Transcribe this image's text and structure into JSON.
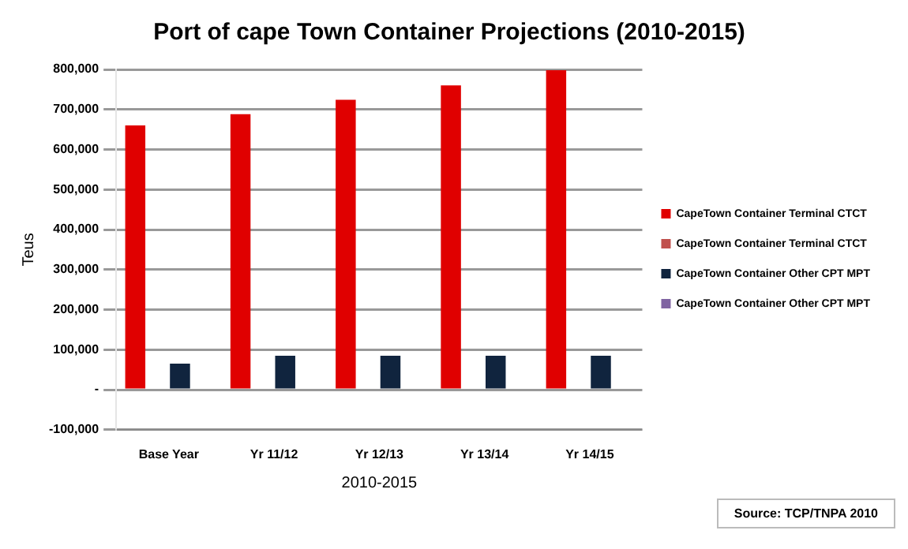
{
  "chart_data": {
    "type": "bar",
    "title": "Port of cape Town Container Projections (2010-2015)",
    "xlabel": "2010-2015",
    "ylabel": "Teus",
    "categories": [
      "Base Year",
      "Yr 11/12",
      "Yr 12/13",
      "Yr 13/14",
      "Yr 14/15"
    ],
    "series": [
      {
        "name": "CapeTown Container Terminal CTCT",
        "color": "#e00000",
        "values": [
          660000,
          688000,
          724000,
          760000,
          798000
        ]
      },
      {
        "name": "CapeTown Container Terminal CTCT",
        "color": "#c0504d",
        "values": [
          0,
          0,
          0,
          0,
          0
        ]
      },
      {
        "name": "CapeTown Container Other CPT MPT",
        "color": "#10243e",
        "values": [
          65000,
          85000,
          85000,
          85000,
          85000
        ]
      },
      {
        "name": "CapeTown Container Other CPT MPT",
        "color": "#8064a2",
        "values": [
          0,
          0,
          0,
          0,
          0
        ]
      }
    ],
    "ylim": [
      -100000,
      800000
    ],
    "yticks": [
      {
        "value": -100000,
        "label": "-100,000"
      },
      {
        "value": 0,
        "label": "-"
      },
      {
        "value": 100000,
        "label": "100,000"
      },
      {
        "value": 200000,
        "label": "200,000"
      },
      {
        "value": 300000,
        "label": "300,000"
      },
      {
        "value": 400000,
        "label": "400,000"
      },
      {
        "value": 500000,
        "label": "500,000"
      },
      {
        "value": 600000,
        "label": "600,000"
      },
      {
        "value": 700000,
        "label": "700,000"
      },
      {
        "value": 800000,
        "label": "800,000"
      }
    ],
    "grid": "y",
    "legend": "right",
    "annotations": [
      "Source: TCP/TNPA 2010"
    ]
  }
}
